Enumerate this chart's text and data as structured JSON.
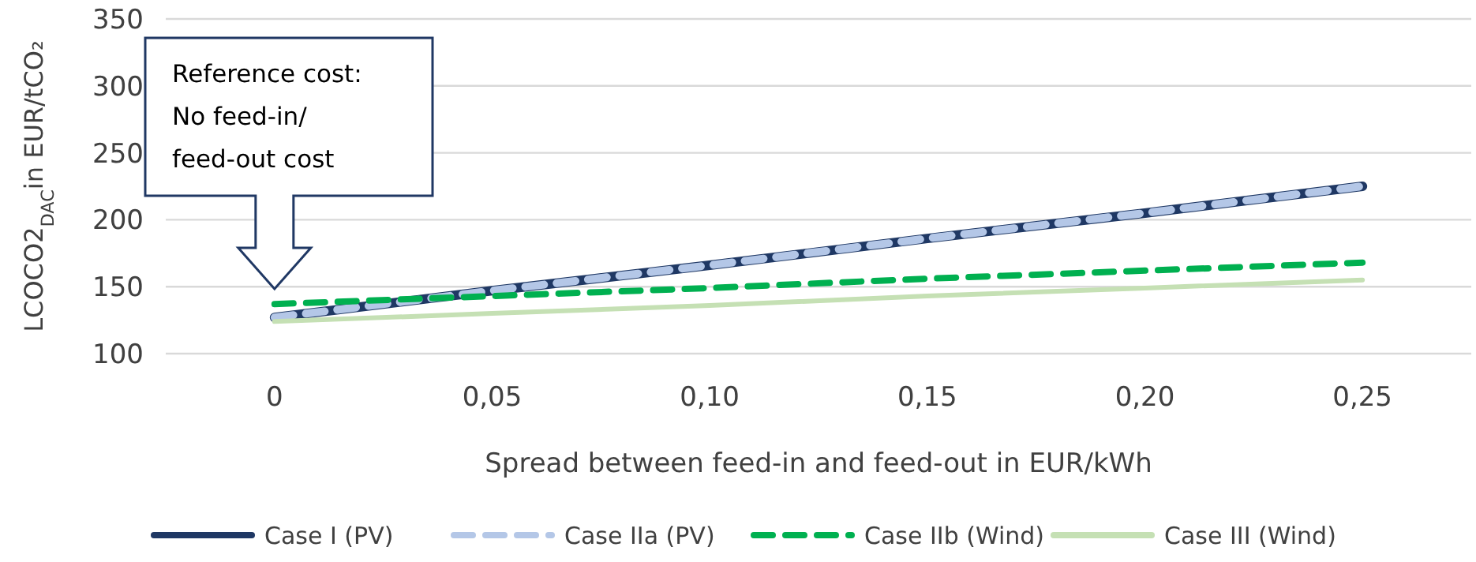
{
  "chart_data": {
    "type": "line",
    "xlabel": "Spread between feed-in and feed-out  in EUR/kWh",
    "ylabel": "LCOCO2$_{DAC}$in EUR/tCO₂",
    "categories": [
      "0",
      "0,05",
      "0,10",
      "0,15",
      "0,20",
      "0,25"
    ],
    "series": [
      {
        "name": "Case I (PV)",
        "color": "#1f3864",
        "line_style": "solid",
        "values": [
          127,
          147,
          166,
          186,
          205,
          225
        ]
      },
      {
        "name": "Case IIa (PV)",
        "color": "#b4c7e7",
        "line_style": "dashed",
        "values": [
          127,
          147,
          166,
          186,
          205,
          225
        ]
      },
      {
        "name": "Case IIb (Wind)",
        "color": "#00b050",
        "line_style": "dashed",
        "values": [
          137,
          143,
          149,
          156,
          162,
          168
        ]
      },
      {
        "name": "Case III (Wind)",
        "color": "#c5e0b4",
        "line_style": "solid",
        "values": [
          124,
          130,
          136,
          143,
          149,
          155
        ]
      }
    ],
    "ylim": [
      100,
      350
    ],
    "yticks": [
      100,
      150,
      200,
      250,
      300,
      350
    ],
    "grid": "y",
    "legend": "bottom",
    "marker": "none",
    "annotations": [
      "Reference cost:\nNo feed-in/\nfeed-out cost"
    ]
  }
}
